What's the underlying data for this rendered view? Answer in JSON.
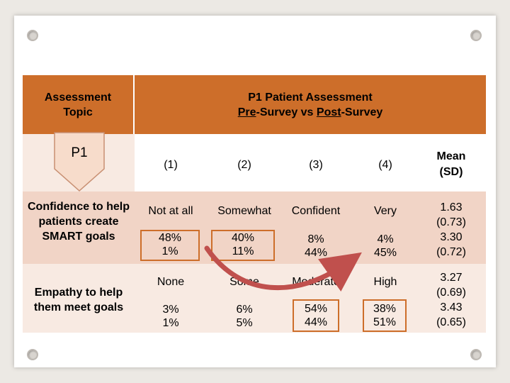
{
  "header": {
    "topic_label": "Assessment Topic",
    "title_line1": "P1 Patient Assessment",
    "title_pre": "Pre",
    "title_survey1": "-Survey vs ",
    "title_post": "Post",
    "title_survey2": "-Survey"
  },
  "p1_tag": "P1",
  "columns": [
    "(1)",
    "(2)",
    "(3)",
    "(4)"
  ],
  "mean_header": "Mean (SD)",
  "rows": [
    {
      "topic": "Confidence to help patients create SMART goals",
      "scale": [
        "Not at all",
        "Somewhat",
        "Confident",
        "Very"
      ],
      "pre": [
        "48%",
        "40%",
        "8%",
        "4%"
      ],
      "post": [
        "1%",
        "11%",
        "44%",
        "45%"
      ],
      "mean": [
        "1.63",
        "(0.73)",
        "3.30",
        "(0.72)"
      ]
    },
    {
      "topic": "Empathy to help them meet goals",
      "scale": [
        "None",
        "Some",
        "Moderate",
        "High"
      ],
      "pre": [
        "3%",
        "6%",
        "54%",
        "38%"
      ],
      "post": [
        "1%",
        "5%",
        "44%",
        "51%"
      ],
      "mean": [
        "3.27",
        "(0.69)",
        "3.43",
        "(0.65)"
      ]
    }
  ],
  "colors": {
    "header": "#cd6e2a",
    "band_dark": "#f1d4c6",
    "band_light": "#f8eae2",
    "arrow": "#c0504d"
  }
}
